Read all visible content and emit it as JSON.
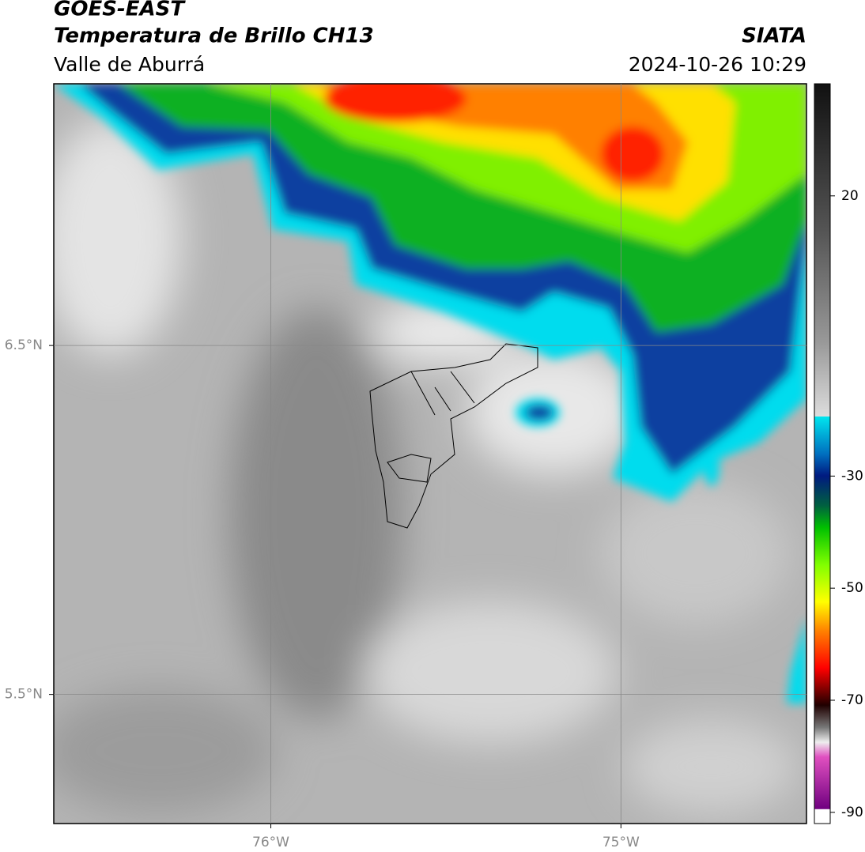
{
  "map": {
    "title": "GOES-EAST",
    "subtitle": "Temperatura de Brillo CH13",
    "region": "Valle de Aburrá",
    "source": "SIATA",
    "datetime": "2024-10-26 10:29",
    "xlim": [
      -76.62,
      -74.47
    ],
    "ylim": [
      5.13,
      7.25
    ],
    "xticks": [
      {
        "value": -76,
        "label": "76°W"
      },
      {
        "value": -75,
        "label": "75°W"
      }
    ],
    "yticks": [
      {
        "value": 6.5,
        "label": "6.5°N"
      },
      {
        "value": 5.5,
        "label": "5.5°N"
      }
    ],
    "grid": true,
    "colorbar": {
      "clim": [
        -92,
        40
      ],
      "ticks": [
        20,
        -30,
        -50,
        -70,
        -90
      ]
    }
  }
}
